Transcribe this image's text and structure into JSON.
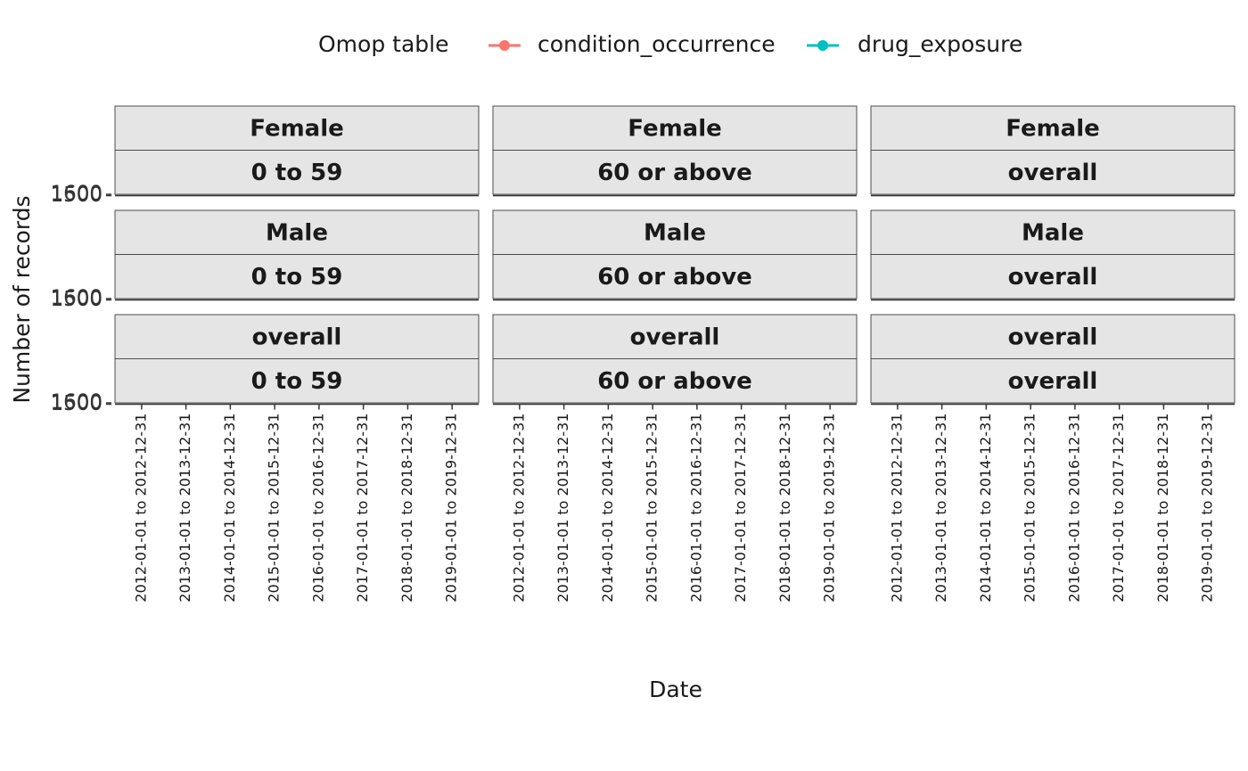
{
  "chart_data": {
    "type": "line",
    "legend_title": "Omop table",
    "series": [
      {
        "name": "condition_occurrence",
        "color": "#f8766d"
      },
      {
        "name": "drug_exposure",
        "color": "#00bfc4"
      }
    ],
    "x_label": "Date",
    "y_label": "Number of records",
    "categories": [
      "2012-01-01 to 2012-12-31",
      "2013-01-01 to 2013-12-31",
      "2014-01-01 to 2014-12-31",
      "2015-01-01 to 2015-12-31",
      "2016-01-01 to 2016-12-31",
      "2017-01-01 to 2017-12-31",
      "2018-01-01 to 2018-12-31",
      "2019-01-01 to 2019-12-31"
    ],
    "ylim": [
      1500,
      1600
    ],
    "yticks": [
      1500,
      1600
    ],
    "facet_rows": [
      "Female",
      "Male",
      "overall"
    ],
    "facet_cols": [
      "0 to 59",
      "60 or above",
      "overall"
    ]
  }
}
